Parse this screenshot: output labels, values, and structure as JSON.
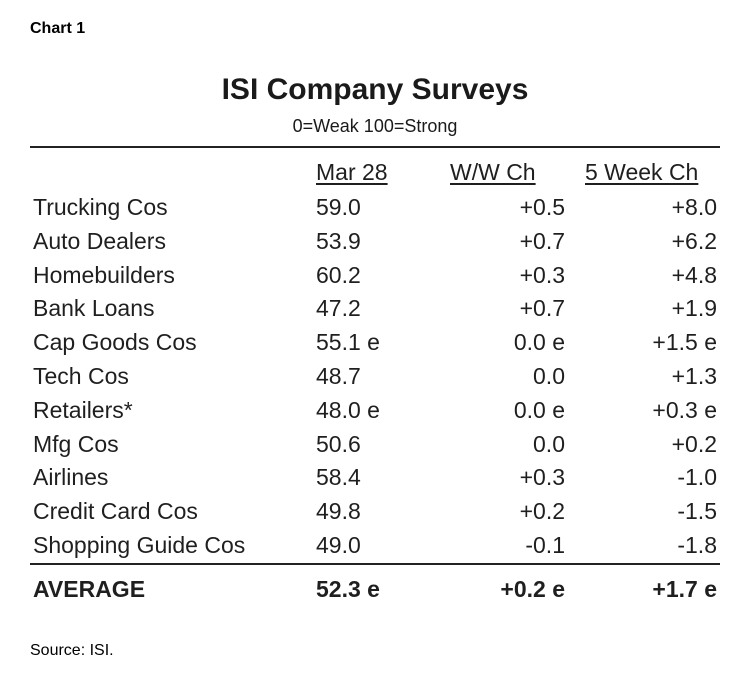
{
  "figure_label": "Chart 1",
  "chart_data": {
    "type": "table",
    "title": "ISI Company Surveys",
    "subtitle": "0=Weak  100=Strong",
    "columns": [
      "Mar 28",
      "W/W Ch",
      "5 Week Ch"
    ],
    "rows": [
      {
        "label": "Trucking Cos",
        "values": [
          "59.0",
          "+0.5",
          "+8.0"
        ]
      },
      {
        "label": "Auto Dealers",
        "values": [
          "53.9",
          "+0.7",
          "+6.2"
        ]
      },
      {
        "label": "Homebuilders",
        "values": [
          "60.2",
          "+0.3",
          "+4.8"
        ]
      },
      {
        "label": "Bank Loans",
        "values": [
          "47.2",
          "+0.7",
          "+1.9"
        ]
      },
      {
        "label": "Cap Goods Cos",
        "values": [
          "55.1 e",
          "0.0 e",
          "+1.5 e"
        ]
      },
      {
        "label": "Tech Cos",
        "values": [
          "48.7",
          "0.0",
          "+1.3"
        ]
      },
      {
        "label": "Retailers*",
        "values": [
          "48.0 e",
          "0.0 e",
          "+0.3 e"
        ]
      },
      {
        "label": "Mfg Cos",
        "values": [
          "50.6",
          "0.0",
          "+0.2"
        ]
      },
      {
        "label": "Airlines",
        "values": [
          "58.4",
          "+0.3",
          "-1.0"
        ]
      },
      {
        "label": "Credit Card Cos",
        "values": [
          "49.8",
          "+0.2",
          "-1.5"
        ]
      },
      {
        "label": "Shopping Guide Cos",
        "values": [
          "49.0",
          "-0.1",
          "-1.8"
        ]
      }
    ],
    "average": {
      "label": "AVERAGE",
      "values": [
        "52.3 e",
        "+0.2 e",
        "+1.7 e"
      ]
    }
  },
  "source": "Source: ISI."
}
